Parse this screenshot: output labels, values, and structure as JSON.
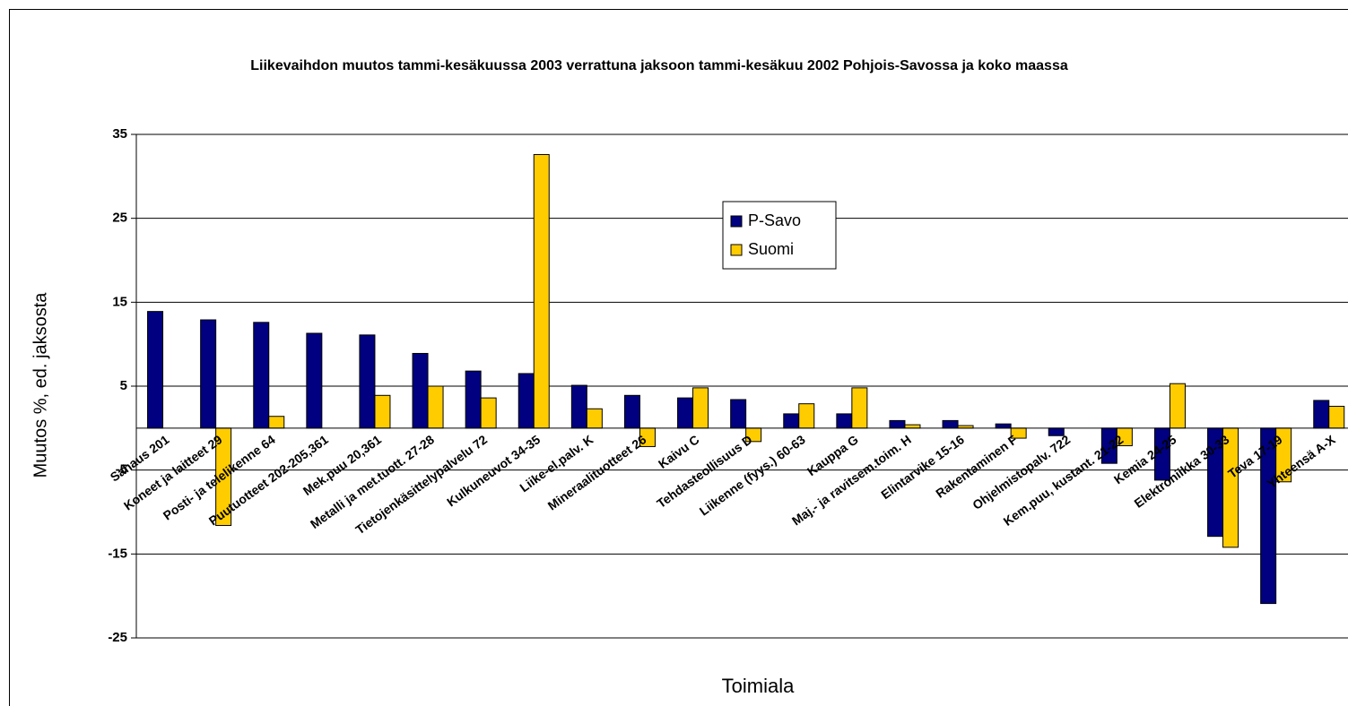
{
  "chart_data": {
    "type": "bar",
    "title": "Liikevaihdon muutos tammi-kesäkuussa 2003 verrattuna jaksoon tammi-kesäkuu 2002 Pohjois-Savossa ja koko maassa",
    "x_label": "Toimiala",
    "y_label": "Muutos %, ed. jaksosta",
    "categories": [
      "Sahaus 201",
      "Koneet ja laitteet 29",
      "Posti- ja telelikenne 64",
      "Puutuotteet 202-205,361",
      "Mek.puu 20,361",
      "Metalli ja met.tuott. 27-28",
      "Tietojenkäsittelypalvelu 72",
      "Kulkuneuvot 34-35",
      "Liike-el.palv. K",
      "Mineraalituotteet 26",
      "Kaivu C",
      "Tehdasteollisuus D",
      "Liikenne (fyys.) 60-63",
      "Kauppa G",
      "Maj.- ja ravitsem.toim. H",
      "Elintarvike 15-16",
      "Rakentaminen F",
      "Ohjelmistopalv. 722",
      "Kem.puu, kustant. 21-22",
      "Kemia 24-25",
      "Elektroniikka 30-33",
      "Teva 17-19",
      "Yhteensä A-X"
    ],
    "series": [
      {
        "name": "P-Savo",
        "color": "#000080",
        "values": [
          13.9,
          12.9,
          12.6,
          11.3,
          11.1,
          8.9,
          6.8,
          6.5,
          5.1,
          3.9,
          3.6,
          3.4,
          1.7,
          1.7,
          0.9,
          0.9,
          0.5,
          -0.9,
          -4.2,
          -6.2,
          -12.9,
          -20.9,
          3.3
        ]
      },
      {
        "name": "Suomi",
        "color": "#ffcc00",
        "values": [
          null,
          -11.6,
          1.4,
          null,
          3.9,
          5.0,
          3.6,
          32.6,
          2.3,
          -2.2,
          4.8,
          -1.6,
          2.9,
          4.8,
          0.4,
          0.3,
          -1.2,
          null,
          -2.1,
          5.3,
          -14.2,
          -6.4,
          2.6
        ]
      }
    ],
    "ylim": [
      -25,
      35
    ],
    "yticks": [
      -25,
      -15,
      -5,
      5,
      15,
      25,
      35
    ],
    "grid": true
  }
}
